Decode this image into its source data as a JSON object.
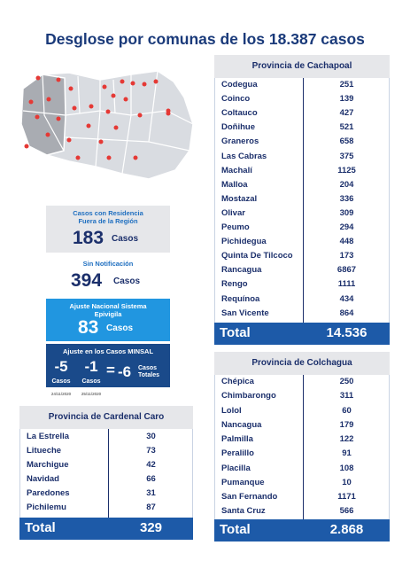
{
  "title": "Desglose por comunas de los 18.387 casos",
  "summary": {
    "residencia": {
      "label": "Casos con Residencia Fuera de la Región",
      "value": "183",
      "unit": "Casos"
    },
    "sin_notificacion": {
      "label": "Sin Notificación",
      "value": "394",
      "unit": "Casos"
    },
    "ajuste_nacional": {
      "label": "Ajuste Nacional Sistema Epivigila",
      "value": "83",
      "unit": "Casos"
    },
    "ajuste_minsal": {
      "label": "Ajuste en los Casos MINSAL",
      "items": [
        {
          "value": "-5",
          "unit": "Casos",
          "date": "24/11/2020"
        },
        {
          "value": "-1",
          "unit": "Casos",
          "date": "25/11/2020"
        }
      ],
      "equals": "=",
      "total": {
        "value": "-6",
        "unit": "Casos Totales"
      }
    }
  },
  "tables": [
    {
      "title": "Provincia de Cachapoal",
      "rows": [
        [
          "Codegua",
          "251"
        ],
        [
          "Coinco",
          "139"
        ],
        [
          "Coltauco",
          "427"
        ],
        [
          "Doñihue",
          "521"
        ],
        [
          "Graneros",
          "658"
        ],
        [
          "Las Cabras",
          "375"
        ],
        [
          "Machalí",
          "1125"
        ],
        [
          "Malloa",
          "204"
        ],
        [
          "Mostazal",
          "336"
        ],
        [
          "Olivar",
          "309"
        ],
        [
          "Peumo",
          "294"
        ],
        [
          "Pichidegua",
          "448"
        ],
        [
          "Quinta De Tilcoco",
          "173"
        ],
        [
          "Rancagua",
          "6867"
        ],
        [
          "Rengo",
          "1111"
        ],
        [
          "Requínoa",
          "434"
        ],
        [
          "San Vicente",
          "864"
        ]
      ],
      "total_label": "Total",
      "total": "14.536"
    },
    {
      "title": "Provincia de Colchagua",
      "rows": [
        [
          "Chépica",
          "250"
        ],
        [
          "Chimbarongo",
          "311"
        ],
        [
          "Lolol",
          "60"
        ],
        [
          "Nancagua",
          "179"
        ],
        [
          "Palmilla",
          "122"
        ],
        [
          "Peralillo",
          "91"
        ],
        [
          "Placilla",
          "108"
        ],
        [
          "Pumanque",
          "10"
        ],
        [
          "San Fernando",
          "1171"
        ],
        [
          "Santa Cruz",
          "566"
        ]
      ],
      "total_label": "Total",
      "total": "2.868"
    },
    {
      "title": "Provincia de Cardenal Caro",
      "rows": [
        [
          "La Estrella",
          "30"
        ],
        [
          "Litueche",
          "73"
        ],
        [
          "Marchigue",
          "42"
        ],
        [
          "Navidad",
          "66"
        ],
        [
          "Paredones",
          "31"
        ],
        [
          "Pichilemu",
          "87"
        ]
      ],
      "total_label": "Total",
      "total": "329"
    }
  ]
}
